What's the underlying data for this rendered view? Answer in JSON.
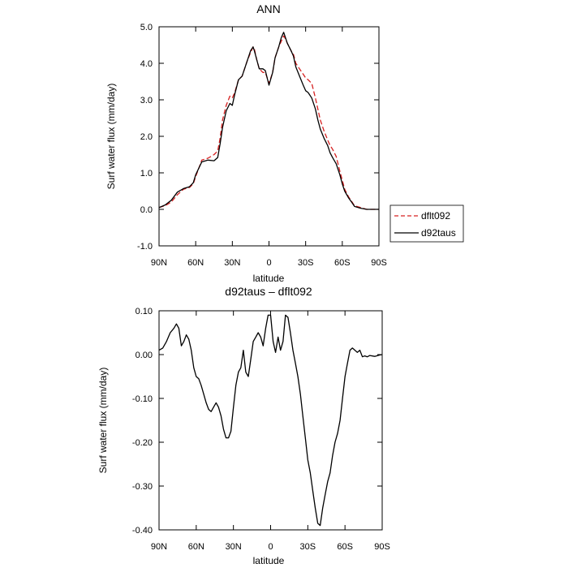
{
  "chart_data": [
    {
      "type": "line",
      "title": "ANN",
      "xlabel": "latitude",
      "ylabel": "Surf water flux (mm/day)",
      "xlim": [
        90,
        -90
      ],
      "ylim": [
        -1.0,
        5.0
      ],
      "x_ticks": [
        90,
        60,
        30,
        0,
        -30,
        -60,
        -90
      ],
      "x_tick_labels": [
        "90N",
        "60N",
        "30N",
        "0",
        "30S",
        "60S",
        "90S"
      ],
      "y_ticks": [
        -1.0,
        0.0,
        1.0,
        2.0,
        3.0,
        4.0,
        5.0
      ],
      "y_tick_labels": [
        "-1.0",
        "0.0",
        "1.0",
        "2.0",
        "3.0",
        "4.0",
        "5.0"
      ],
      "grid": false,
      "legend_position": "outside-right",
      "series": [
        {
          "name": "dflt092",
          "color": "#d62020",
          "style": "dashed",
          "x": [
            90,
            85,
            80,
            75,
            70,
            65,
            62,
            60,
            55,
            50,
            45,
            42,
            40,
            38,
            35,
            32,
            30,
            28,
            25,
            22,
            20,
            18,
            15,
            13,
            12,
            10,
            8,
            5,
            3,
            0,
            -3,
            -5,
            -8,
            -10,
            -12,
            -13,
            -15,
            -18,
            -20,
            -22,
            -25,
            -28,
            -30,
            -32,
            -35,
            -38,
            -40,
            -42,
            -45,
            -48,
            -50,
            -52,
            -55,
            -58,
            -60,
            -62,
            -65,
            -68,
            -70,
            -75,
            -80,
            -85,
            -90
          ],
          "y": [
            0.05,
            0.1,
            0.2,
            0.4,
            0.55,
            0.6,
            0.7,
            0.9,
            1.35,
            1.4,
            1.5,
            1.6,
            1.95,
            2.45,
            2.85,
            3.1,
            3.05,
            3.2,
            3.55,
            3.65,
            3.85,
            4.05,
            4.3,
            4.45,
            4.4,
            4.1,
            3.85,
            3.75,
            3.75,
            3.45,
            3.75,
            4.15,
            4.45,
            4.6,
            4.75,
            4.7,
            4.55,
            4.35,
            4.25,
            4.0,
            3.85,
            3.7,
            3.6,
            3.55,
            3.45,
            3.05,
            2.75,
            2.45,
            2.15,
            1.9,
            1.75,
            1.65,
            1.45,
            1.05,
            0.8,
            0.55,
            0.35,
            0.2,
            0.1,
            0.05,
            0.0,
            0.0,
            0.0
          ]
        },
        {
          "name": "d92taus",
          "color": "#000000",
          "style": "solid",
          "x": [
            90,
            85,
            80,
            75,
            70,
            65,
            62,
            60,
            55,
            50,
            45,
            42,
            40,
            38,
            35,
            32,
            30,
            28,
            25,
            22,
            20,
            18,
            15,
            13,
            12,
            10,
            8,
            5,
            3,
            0,
            -3,
            -5,
            -8,
            -10,
            -12,
            -13,
            -15,
            -18,
            -20,
            -22,
            -25,
            -28,
            -30,
            -32,
            -35,
            -38,
            -40,
            -42,
            -45,
            -48,
            -50,
            -52,
            -55,
            -58,
            -60,
            -62,
            -65,
            -68,
            -70,
            -75,
            -80,
            -85,
            -90
          ],
          "y": [
            0.05,
            0.12,
            0.25,
            0.47,
            0.57,
            0.62,
            0.73,
            0.95,
            1.3,
            1.35,
            1.33,
            1.42,
            1.8,
            2.25,
            2.7,
            2.9,
            2.85,
            3.15,
            3.55,
            3.65,
            3.85,
            4.05,
            4.35,
            4.45,
            4.35,
            4.1,
            3.85,
            3.85,
            3.8,
            3.4,
            3.75,
            4.15,
            4.45,
            4.7,
            4.85,
            4.75,
            4.55,
            4.35,
            4.2,
            3.9,
            3.65,
            3.4,
            3.25,
            3.2,
            3.05,
            2.75,
            2.45,
            2.2,
            1.95,
            1.75,
            1.55,
            1.42,
            1.25,
            0.95,
            0.7,
            0.5,
            0.32,
            0.18,
            0.08,
            0.03,
            0.0,
            0.0,
            0.0
          ]
        }
      ],
      "legend": [
        "dflt092",
        "d92taus"
      ]
    },
    {
      "type": "line",
      "title": "d92taus – dflt092",
      "xlabel": "latitude",
      "ylabel": "Surf water flux (mm/day)",
      "xlim": [
        90,
        -90
      ],
      "ylim": [
        -0.4,
        0.1
      ],
      "x_ticks": [
        90,
        60,
        30,
        0,
        -30,
        -60,
        -90
      ],
      "x_tick_labels": [
        "90N",
        "60N",
        "30N",
        "0",
        "30S",
        "60S",
        "90S"
      ],
      "y_ticks": [
        -0.4,
        -0.3,
        -0.2,
        -0.1,
        0.0,
        0.1
      ],
      "y_tick_labels": [
        "-0.40",
        "-0.30",
        "-0.20",
        "-0.10",
        "0.00",
        "0.10"
      ],
      "grid": false,
      "series": [
        {
          "color": "#000000",
          "style": "solid",
          "x": [
            90,
            87,
            84,
            81,
            78,
            76,
            74,
            72,
            70,
            68,
            66,
            64,
            62,
            60,
            58,
            56,
            54,
            52,
            50,
            48,
            46,
            44,
            42,
            40,
            38,
            36,
            34,
            32,
            30,
            28,
            26,
            24,
            22,
            20,
            18,
            16,
            14,
            12,
            10,
            8,
            6,
            4,
            2,
            0,
            -2,
            -4,
            -6,
            -8,
            -10,
            -12,
            -14,
            -16,
            -18,
            -20,
            -22,
            -24,
            -26,
            -28,
            -30,
            -32,
            -34,
            -36,
            -38,
            -40,
            -42,
            -44,
            -46,
            -48,
            -50,
            -52,
            -54,
            -56,
            -58,
            -60,
            -62,
            -64,
            -66,
            -68,
            -70,
            -72,
            -74,
            -76,
            -78,
            -80,
            -84,
            -88,
            -90
          ],
          "y": [
            0.01,
            0.015,
            0.03,
            0.05,
            0.06,
            0.07,
            0.06,
            0.02,
            0.03,
            0.045,
            0.035,
            0.01,
            -0.03,
            -0.05,
            -0.055,
            -0.07,
            -0.09,
            -0.11,
            -0.125,
            -0.13,
            -0.12,
            -0.11,
            -0.12,
            -0.14,
            -0.17,
            -0.19,
            -0.19,
            -0.175,
            -0.12,
            -0.07,
            -0.04,
            -0.03,
            0.01,
            -0.04,
            -0.05,
            -0.01,
            0.03,
            0.04,
            0.05,
            0.04,
            0.02,
            0.06,
            0.09,
            0.09,
            0.03,
            0.005,
            0.04,
            0.01,
            0.03,
            0.09,
            0.085,
            0.05,
            0.01,
            -0.02,
            -0.05,
            -0.09,
            -0.14,
            -0.19,
            -0.24,
            -0.27,
            -0.31,
            -0.35,
            -0.385,
            -0.39,
            -0.35,
            -0.32,
            -0.29,
            -0.27,
            -0.23,
            -0.2,
            -0.18,
            -0.15,
            -0.1,
            -0.05,
            -0.02,
            0.01,
            0.015,
            0.01,
            0.005,
            0.01,
            -0.005,
            -0.003,
            -0.005,
            -0.002,
            -0.004,
            -0.001,
            0.0
          ]
        }
      ]
    }
  ]
}
